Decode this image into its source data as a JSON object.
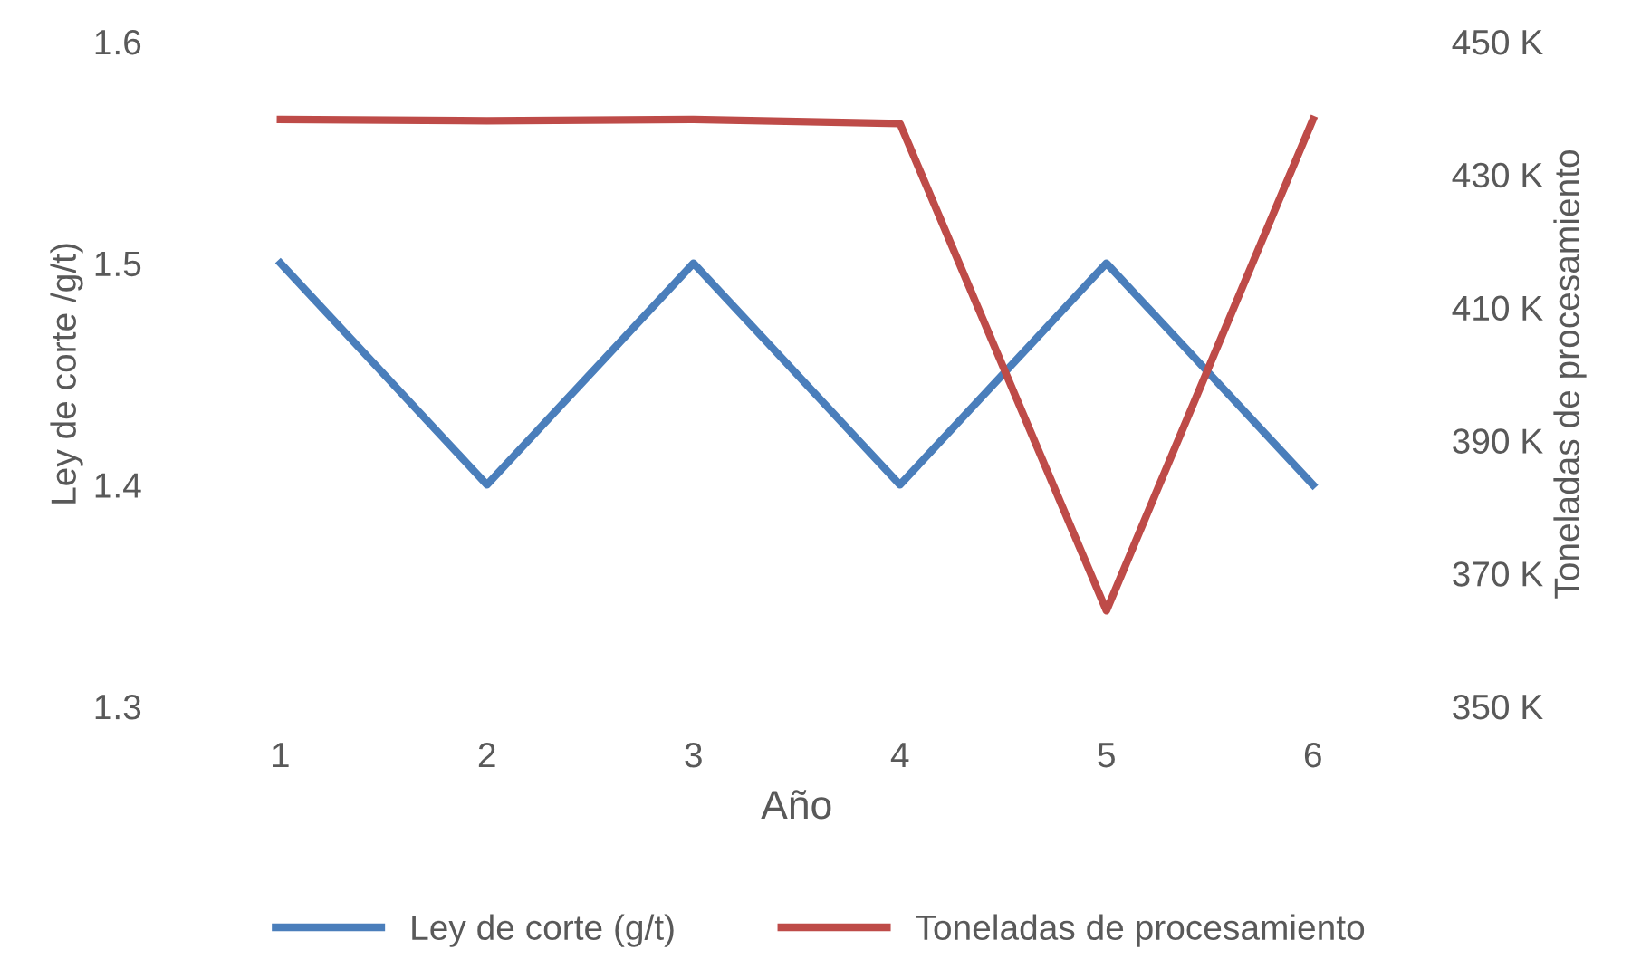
{
  "chart_data": {
    "type": "line",
    "xlabel": "Año",
    "ylabel": "Ley de corte /g/t)",
    "y2label": "Toneladas de procesamiento",
    "categories": [
      "1",
      "2",
      "3",
      "4",
      "5",
      "6"
    ],
    "series": [
      {
        "name": "Ley de corte (g/t)",
        "color": "#4a7ebb",
        "values": [
          1.5,
          1.4,
          1.5,
          1.4,
          1.5,
          1.4
        ]
      },
      {
        "name": "Toneladas de procesamiento",
        "color": "#be4b48",
        "axis": "y2",
        "values": [
          438300,
          438100,
          438300,
          437700,
          364400,
          438300
        ]
      }
    ],
    "ylim": [
      1.3,
      1.6
    ],
    "yticks": [
      1.3,
      1.4,
      1.5,
      1.6
    ],
    "y2lim": [
      350000,
      450000
    ],
    "y2ticks": [
      {
        "value": 350000,
        "label": "350 K"
      },
      {
        "value": 370000,
        "label": "370 K"
      },
      {
        "value": 390000,
        "label": "390 K"
      },
      {
        "value": 410000,
        "label": "410 K"
      },
      {
        "value": 430000,
        "label": "430 K"
      },
      {
        "value": 450000,
        "label": "450 K"
      }
    ],
    "legend": "bottom",
    "grid": false,
    "marker": "none",
    "line_style": "solid"
  }
}
